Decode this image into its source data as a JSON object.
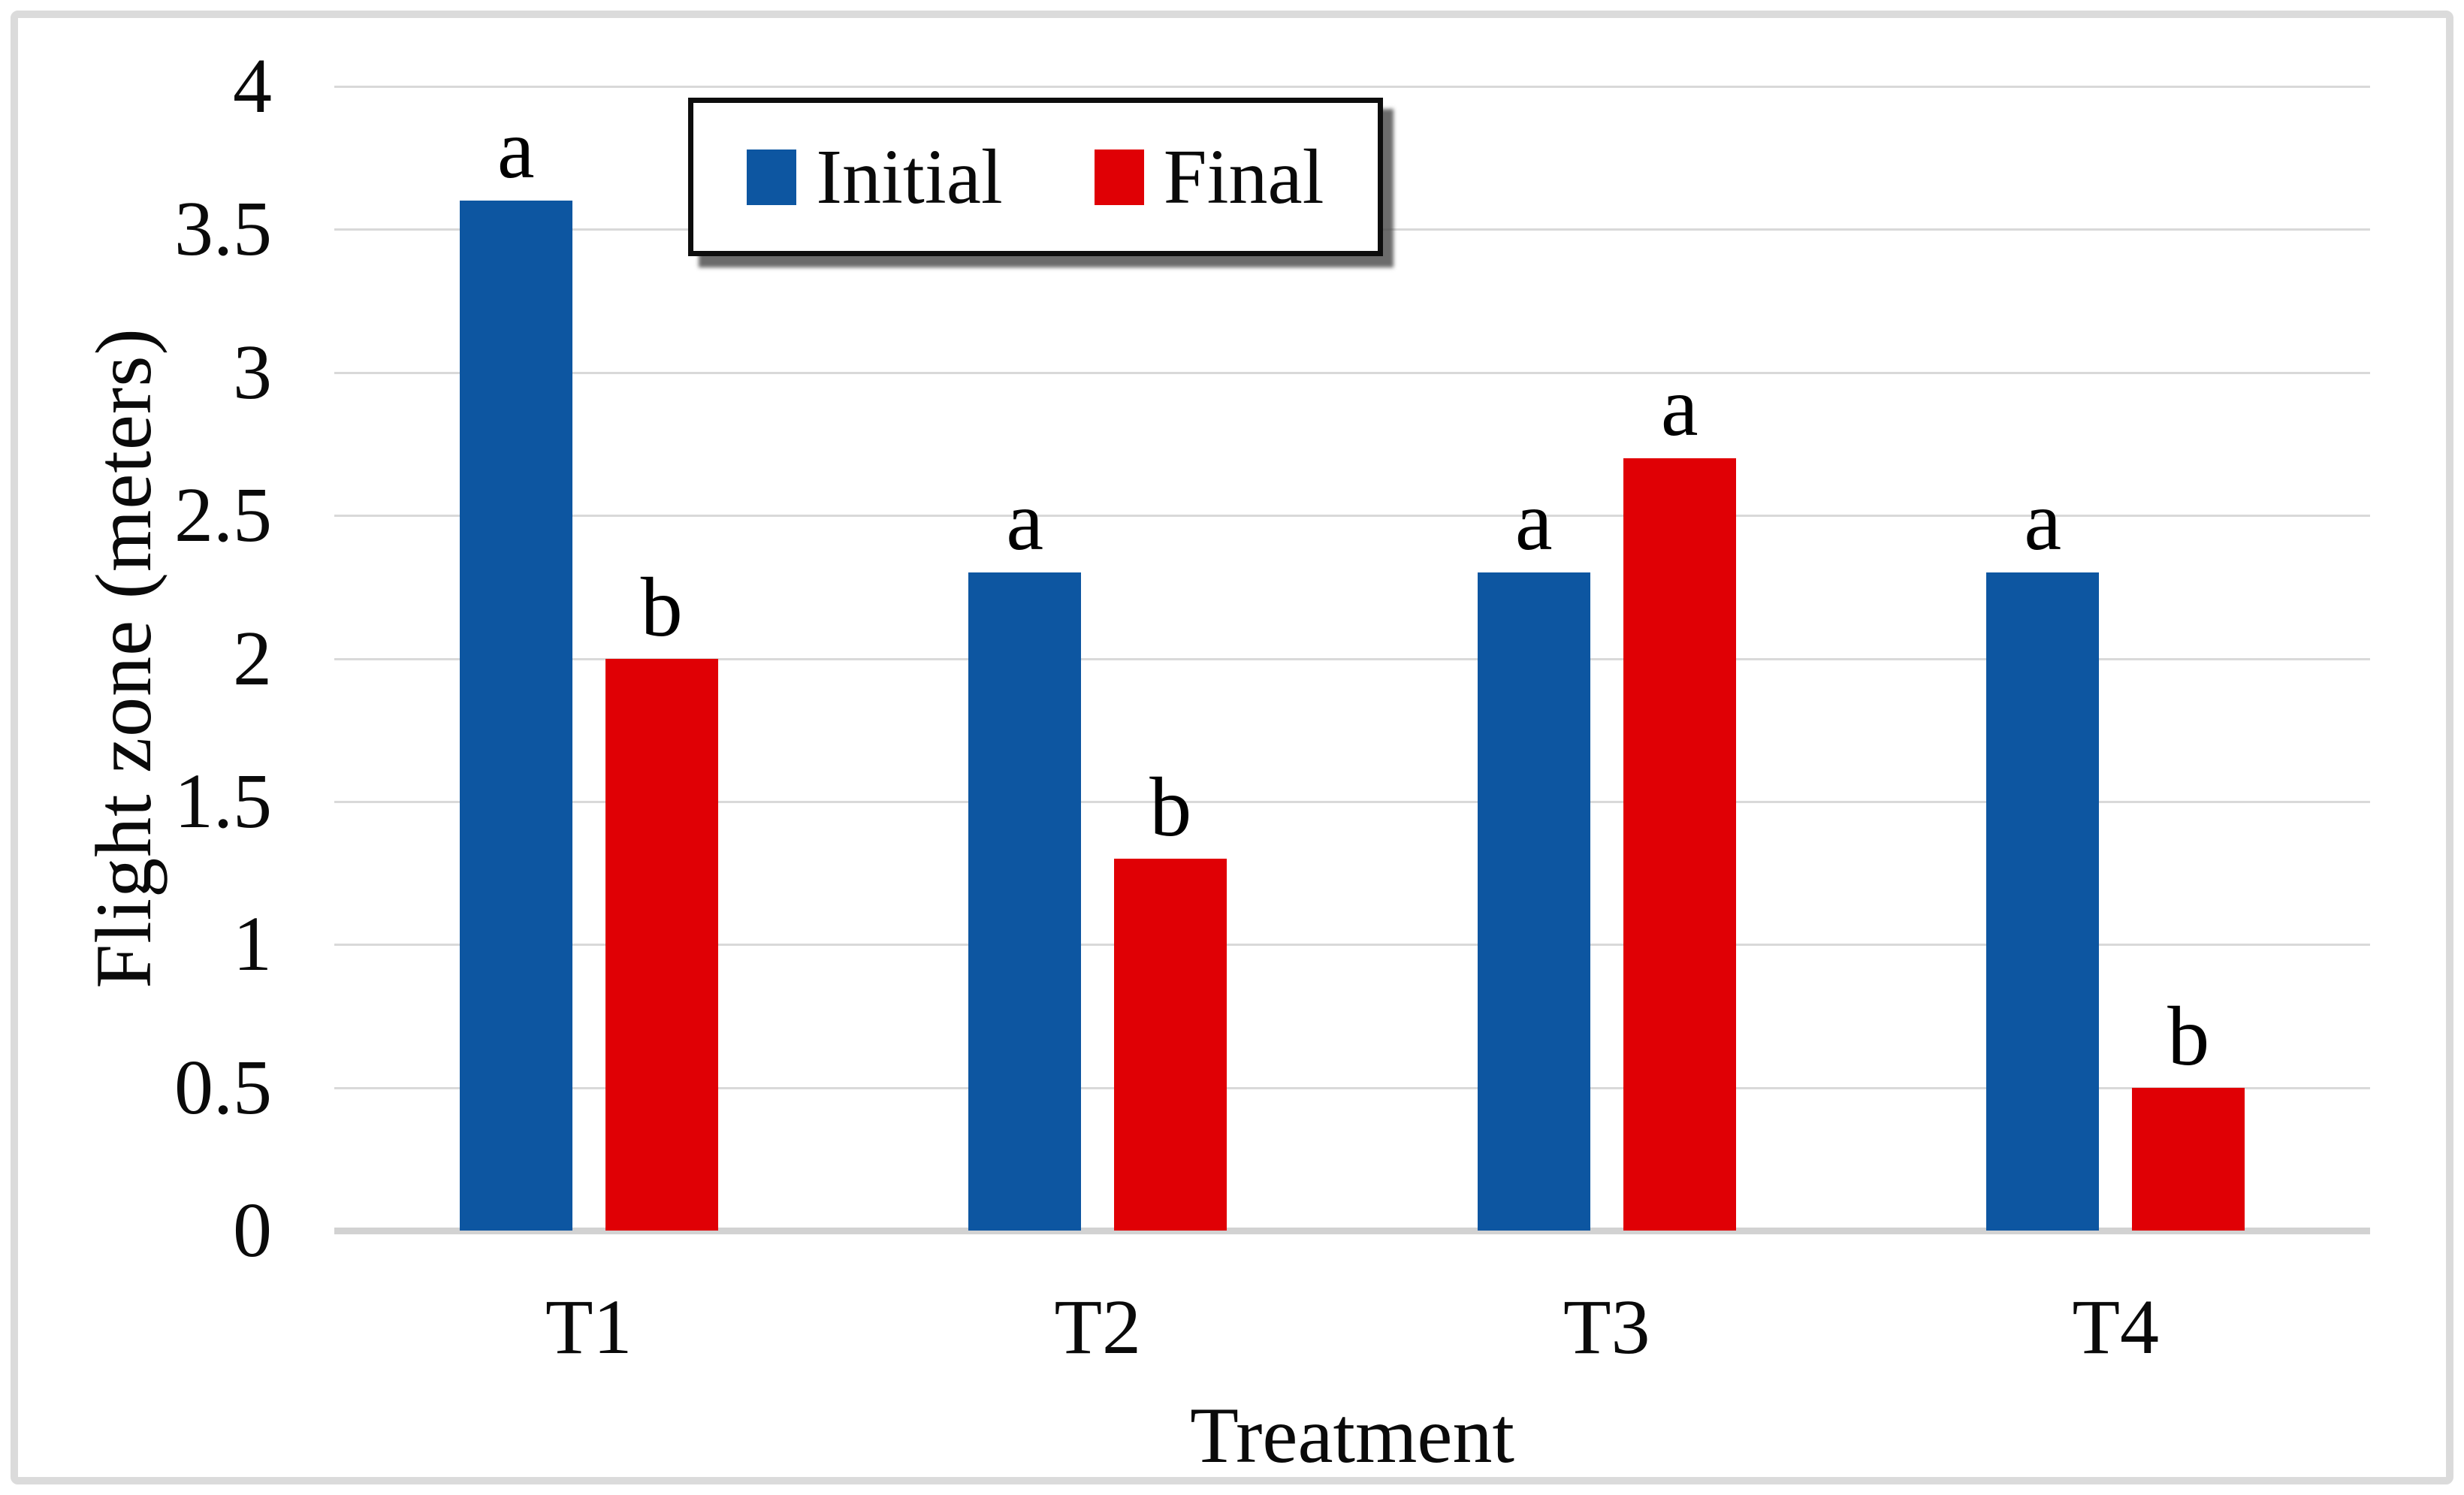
{
  "figure": {
    "type_note": "grouped bar chart figure"
  },
  "chart_data": {
    "type": "bar",
    "title": "",
    "categories": [
      "T1",
      "T2",
      "T3",
      "T4"
    ],
    "series": [
      {
        "name": "Initial",
        "color": "#0d56a1",
        "values": [
          3.6,
          2.3,
          2.3,
          2.3
        ],
        "sig_letters": [
          "a",
          "a",
          "a",
          "a"
        ]
      },
      {
        "name": "Final",
        "color": "#e00005",
        "values": [
          2.0,
          1.3,
          2.7,
          0.5
        ],
        "sig_letters": [
          "b",
          "b",
          "a",
          "b"
        ]
      }
    ],
    "xlabel": "Treatment",
    "ylabel": "Flight zone (meters)",
    "ylim": [
      0,
      4
    ],
    "ytick_step": 0.5,
    "y_tick_labels_top_to_bottom": [
      "4",
      "3.5",
      "3",
      "2.5",
      "2",
      "1.5",
      "1",
      "0.5",
      "0"
    ],
    "grid": true,
    "legend_position": "top-left-inside",
    "annotation_note": "letters a/b above bars denote statistical significance groups"
  },
  "legend": {
    "items": [
      {
        "label": "Initial",
        "color": "#0d56a1"
      },
      {
        "label": "Final",
        "color": "#e00005"
      }
    ]
  },
  "colors": {
    "gridline": "#d9d9d9",
    "axis_baseline": "#d2d2d2",
    "outer_frame": "#dbdbdb",
    "background": "#ffffff",
    "text": "#0a0a0a"
  }
}
